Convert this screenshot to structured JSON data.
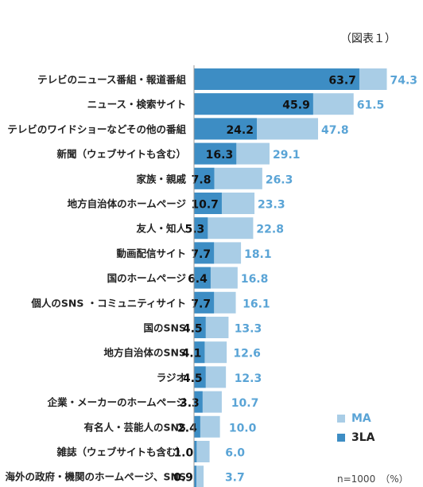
{
  "figure_note": "（図表１）",
  "n_note": "n=1000　（%）",
  "colors": {
    "ma": "#a9cde6",
    "la": "#3d8dc4",
    "ma_text": "#5aa4d6",
    "axis": "#999999",
    "label": "#222222"
  },
  "chart_data": {
    "type": "bar",
    "orientation": "horizontal",
    "categories": [
      "テレビのニュース番組・報道番組",
      "ニュース・検索サイト",
      "テレビのワイドショーなどその他の番組",
      "新聞（ウェブサイトも含む）",
      "家族・親戚",
      "地方自治体のホームページ",
      "友人・知人",
      "動画配信サイト",
      "国のホームページ",
      "個人のSNS ・コミュニティサイト",
      "国のSNS",
      "地方自治体のSNS",
      "ラジオ",
      "企業・メーカーのホームページ",
      "有名人・芸能人のSNS",
      "雑誌（ウェブサイトも含む）",
      "海外の政府・機関のホームページ、SNS"
    ],
    "series": [
      {
        "name": "MA",
        "values": [
          74.3,
          61.5,
          47.8,
          29.1,
          26.3,
          23.3,
          22.8,
          18.1,
          16.8,
          16.1,
          13.3,
          12.6,
          12.3,
          10.7,
          10.0,
          6.0,
          3.7
        ]
      },
      {
        "name": "3LA",
        "values": [
          63.7,
          45.9,
          24.2,
          16.3,
          7.8,
          10.7,
          5.3,
          7.7,
          6.4,
          7.7,
          4.5,
          4.1,
          4.5,
          3.3,
          2.4,
          1.0,
          0.9
        ]
      }
    ],
    "legend_position": "bottom-right",
    "grid": false
  }
}
